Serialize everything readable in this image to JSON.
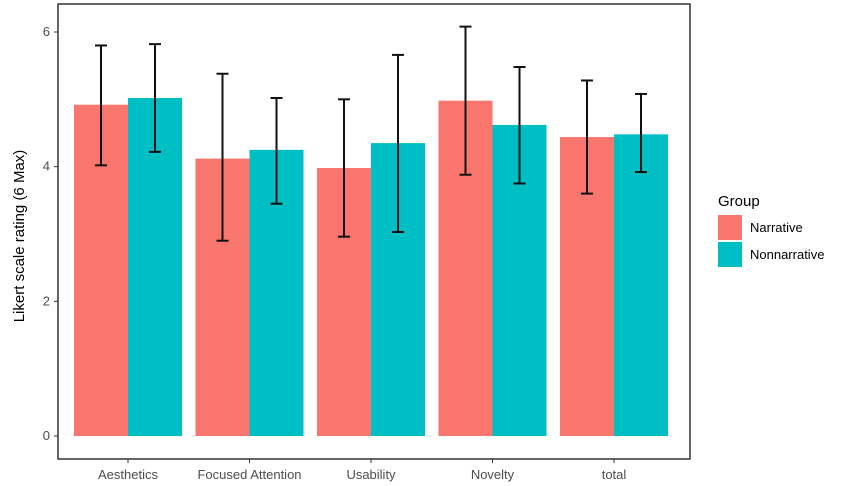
{
  "chart_data": {
    "type": "bar",
    "title": "",
    "xlabel": "",
    "ylabel": "Likert scale rating (6 Max)",
    "ylim": [
      0,
      6.3
    ],
    "yticks": [
      0,
      2,
      4,
      6
    ],
    "grid": false,
    "legend_placement": "right",
    "legend_title": "Group",
    "categories": [
      "Aesthetics",
      "Focused Attention",
      "Usability",
      "Novelty",
      "total"
    ],
    "series": [
      {
        "name": "Narrative",
        "color": "#F8766D",
        "values": [
          4.92,
          4.12,
          3.98,
          4.98,
          4.44
        ],
        "error_low": [
          4.02,
          2.9,
          2.96,
          3.88,
          3.6
        ],
        "error_high": [
          5.8,
          5.38,
          5.0,
          6.08,
          5.28
        ]
      },
      {
        "name": "Nonnarrative",
        "color": "#00BFC4",
        "values": [
          5.02,
          4.25,
          4.35,
          4.62,
          4.48
        ],
        "error_low": [
          4.22,
          3.45,
          3.03,
          3.75,
          3.92
        ],
        "error_high": [
          5.82,
          5.02,
          5.66,
          5.48,
          5.08
        ]
      }
    ]
  }
}
